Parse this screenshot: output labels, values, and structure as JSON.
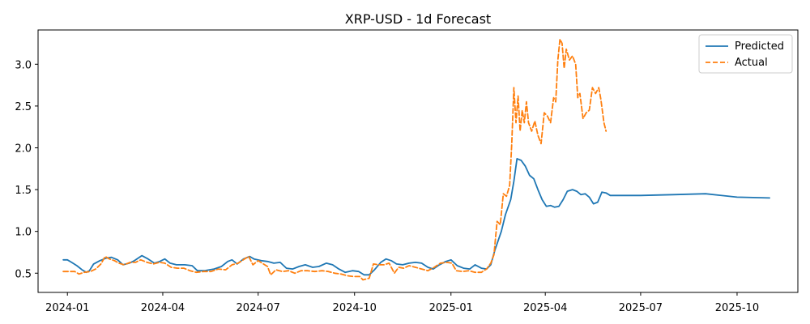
{
  "chart_data": {
    "type": "line",
    "title": "XRP-USD - 1d Forecast",
    "xlabel": "",
    "ylabel": "",
    "x_axis": {
      "type": "date",
      "range": [
        "2023-12-04",
        "2025-11-28"
      ],
      "ticks": [
        "2024-01-01",
        "2024-04-01",
        "2024-07-01",
        "2024-10-01",
        "2025-01-01",
        "2025-04-01",
        "2025-07-01",
        "2025-10-01"
      ],
      "tick_labels": [
        "2024-01",
        "2024-04",
        "2024-07",
        "2024-10",
        "2025-01",
        "2025-04",
        "2025-07",
        "2025-10"
      ]
    },
    "y_axis": {
      "range": [
        0.27,
        3.41
      ],
      "ticks": [
        0.5,
        1.0,
        1.5,
        2.0,
        2.5,
        3.0
      ],
      "tick_labels": [
        "0.5",
        "1.0",
        "1.5",
        "2.0",
        "2.5",
        "3.0"
      ]
    },
    "grid": false,
    "legend": {
      "placement": "top-right",
      "entries": [
        "Predicted",
        "Actual"
      ]
    },
    "series": [
      {
        "name": "Predicted",
        "color": "#1f77b4",
        "style": "solid",
        "points": [
          [
            "2023-12-28",
            0.66
          ],
          [
            "2024-01-01",
            0.66
          ],
          [
            "2024-01-05",
            0.63
          ],
          [
            "2024-01-10",
            0.59
          ],
          [
            "2024-01-15",
            0.54
          ],
          [
            "2024-01-19",
            0.51
          ],
          [
            "2024-01-22",
            0.53
          ],
          [
            "2024-01-26",
            0.61
          ],
          [
            "2024-02-01",
            0.65
          ],
          [
            "2024-02-07",
            0.68
          ],
          [
            "2024-02-12",
            0.69
          ],
          [
            "2024-02-18",
            0.66
          ],
          [
            "2024-02-23",
            0.6
          ],
          [
            "2024-02-29",
            0.62
          ],
          [
            "2024-03-05",
            0.65
          ],
          [
            "2024-03-12",
            0.71
          ],
          [
            "2024-03-18",
            0.67
          ],
          [
            "2024-03-24",
            0.62
          ],
          [
            "2024-03-29",
            0.64
          ],
          [
            "2024-04-03",
            0.67
          ],
          [
            "2024-04-08",
            0.62
          ],
          [
            "2024-04-14",
            0.6
          ],
          [
            "2024-04-22",
            0.6
          ],
          [
            "2024-04-29",
            0.59
          ],
          [
            "2024-05-04",
            0.53
          ],
          [
            "2024-05-11",
            0.53
          ],
          [
            "2024-05-20",
            0.55
          ],
          [
            "2024-05-27",
            0.58
          ],
          [
            "2024-06-02",
            0.64
          ],
          [
            "2024-06-06",
            0.66
          ],
          [
            "2024-06-11",
            0.61
          ],
          [
            "2024-06-17",
            0.67
          ],
          [
            "2024-06-23",
            0.7
          ],
          [
            "2024-06-27",
            0.67
          ],
          [
            "2024-07-04",
            0.65
          ],
          [
            "2024-07-10",
            0.64
          ],
          [
            "2024-07-16",
            0.62
          ],
          [
            "2024-07-22",
            0.63
          ],
          [
            "2024-07-28",
            0.56
          ],
          [
            "2024-08-03",
            0.55
          ],
          [
            "2024-08-09",
            0.58
          ],
          [
            "2024-08-15",
            0.6
          ],
          [
            "2024-08-22",
            0.57
          ],
          [
            "2024-08-28",
            0.58
          ],
          [
            "2024-09-04",
            0.62
          ],
          [
            "2024-09-10",
            0.6
          ],
          [
            "2024-09-16",
            0.55
          ],
          [
            "2024-09-22",
            0.51
          ],
          [
            "2024-09-29",
            0.53
          ],
          [
            "2024-10-05",
            0.52
          ],
          [
            "2024-10-10",
            0.48
          ],
          [
            "2024-10-15",
            0.48
          ],
          [
            "2024-10-20",
            0.54
          ],
          [
            "2024-10-26",
            0.63
          ],
          [
            "2024-10-31",
            0.67
          ],
          [
            "2024-11-05",
            0.65
          ],
          [
            "2024-11-10",
            0.61
          ],
          [
            "2024-11-16",
            0.6
          ],
          [
            "2024-11-22",
            0.62
          ],
          [
            "2024-11-28",
            0.63
          ],
          [
            "2024-12-04",
            0.62
          ],
          [
            "2024-12-10",
            0.57
          ],
          [
            "2024-12-15",
            0.55
          ],
          [
            "2024-12-21",
            0.6
          ],
          [
            "2024-12-27",
            0.64
          ],
          [
            "2025-01-01",
            0.66
          ],
          [
            "2025-01-07",
            0.59
          ],
          [
            "2025-01-13",
            0.56
          ],
          [
            "2025-01-19",
            0.55
          ],
          [
            "2025-01-24",
            0.6
          ],
          [
            "2025-01-30",
            0.56
          ],
          [
            "2025-02-04",
            0.55
          ],
          [
            "2025-02-08",
            0.6
          ],
          [
            "2025-02-12",
            0.78
          ],
          [
            "2025-02-18",
            1.0
          ],
          [
            "2025-02-22",
            1.2
          ],
          [
            "2025-02-27",
            1.38
          ],
          [
            "2025-03-02",
            1.6
          ],
          [
            "2025-03-05",
            1.87
          ],
          [
            "2025-03-09",
            1.85
          ],
          [
            "2025-03-13",
            1.78
          ],
          [
            "2025-03-17",
            1.67
          ],
          [
            "2025-03-21",
            1.63
          ],
          [
            "2025-03-25",
            1.5
          ],
          [
            "2025-03-29",
            1.38
          ],
          [
            "2025-04-02",
            1.3
          ],
          [
            "2025-04-06",
            1.31
          ],
          [
            "2025-04-10",
            1.29
          ],
          [
            "2025-04-14",
            1.3
          ],
          [
            "2025-04-18",
            1.38
          ],
          [
            "2025-04-22",
            1.48
          ],
          [
            "2025-04-27",
            1.5
          ],
          [
            "2025-05-01",
            1.48
          ],
          [
            "2025-05-05",
            1.44
          ],
          [
            "2025-05-09",
            1.45
          ],
          [
            "2025-05-13",
            1.41
          ],
          [
            "2025-05-17",
            1.33
          ],
          [
            "2025-05-21",
            1.35
          ],
          [
            "2025-05-25",
            1.47
          ],
          [
            "2025-05-29",
            1.46
          ],
          [
            "2025-06-02",
            1.43
          ],
          [
            "2025-07-01",
            1.43
          ],
          [
            "2025-08-01",
            1.44
          ],
          [
            "2025-09-01",
            1.45
          ],
          [
            "2025-10-01",
            1.41
          ],
          [
            "2025-11-01",
            1.4
          ]
        ]
      },
      {
        "name": "Actual",
        "color": "#ff7f0e",
        "style": "dashed",
        "points": [
          [
            "2023-12-28",
            0.52
          ],
          [
            "2024-01-03",
            0.52
          ],
          [
            "2024-01-08",
            0.52
          ],
          [
            "2024-01-12",
            0.49
          ],
          [
            "2024-01-17",
            0.51
          ],
          [
            "2024-01-23",
            0.52
          ],
          [
            "2024-01-28",
            0.55
          ],
          [
            "2024-02-02",
            0.61
          ],
          [
            "2024-02-06",
            0.7
          ],
          [
            "2024-02-10",
            0.67
          ],
          [
            "2024-02-15",
            0.65
          ],
          [
            "2024-02-19",
            0.62
          ],
          [
            "2024-02-24",
            0.6
          ],
          [
            "2024-03-01",
            0.63
          ],
          [
            "2024-03-06",
            0.63
          ],
          [
            "2024-03-11",
            0.66
          ],
          [
            "2024-03-17",
            0.63
          ],
          [
            "2024-03-23",
            0.61
          ],
          [
            "2024-03-29",
            0.63
          ],
          [
            "2024-04-03",
            0.62
          ],
          [
            "2024-04-09",
            0.57
          ],
          [
            "2024-04-15",
            0.56
          ],
          [
            "2024-04-21",
            0.56
          ],
          [
            "2024-04-27",
            0.53
          ],
          [
            "2024-05-03",
            0.51
          ],
          [
            "2024-05-10",
            0.52
          ],
          [
            "2024-05-17",
            0.52
          ],
          [
            "2024-05-24",
            0.55
          ],
          [
            "2024-05-31",
            0.54
          ],
          [
            "2024-06-06",
            0.6
          ],
          [
            "2024-06-12",
            0.62
          ],
          [
            "2024-06-18",
            0.67
          ],
          [
            "2024-06-22",
            0.7
          ],
          [
            "2024-06-26",
            0.6
          ],
          [
            "2024-07-01",
            0.65
          ],
          [
            "2024-07-06",
            0.61
          ],
          [
            "2024-07-10",
            0.58
          ],
          [
            "2024-07-13",
            0.48
          ],
          [
            "2024-07-18",
            0.54
          ],
          [
            "2024-07-24",
            0.52
          ],
          [
            "2024-07-30",
            0.53
          ],
          [
            "2024-08-05",
            0.5
          ],
          [
            "2024-08-11",
            0.53
          ],
          [
            "2024-08-17",
            0.53
          ],
          [
            "2024-08-24",
            0.52
          ],
          [
            "2024-08-31",
            0.53
          ],
          [
            "2024-09-06",
            0.52
          ],
          [
            "2024-09-12",
            0.5
          ],
          [
            "2024-09-18",
            0.49
          ],
          [
            "2024-09-24",
            0.47
          ],
          [
            "2024-09-30",
            0.46
          ],
          [
            "2024-10-06",
            0.46
          ],
          [
            "2024-10-09",
            0.42
          ],
          [
            "2024-10-15",
            0.44
          ],
          [
            "2024-10-19",
            0.61
          ],
          [
            "2024-10-24",
            0.6
          ],
          [
            "2024-10-29",
            0.6
          ],
          [
            "2024-11-03",
            0.62
          ],
          [
            "2024-11-08",
            0.5
          ],
          [
            "2024-11-12",
            0.57
          ],
          [
            "2024-11-17",
            0.56
          ],
          [
            "2024-11-22",
            0.59
          ],
          [
            "2024-11-28",
            0.57
          ],
          [
            "2024-12-04",
            0.55
          ],
          [
            "2024-12-10",
            0.53
          ],
          [
            "2024-12-16",
            0.57
          ],
          [
            "2024-12-22",
            0.62
          ],
          [
            "2024-12-28",
            0.63
          ],
          [
            "2025-01-02",
            0.62
          ],
          [
            "2025-01-06",
            0.53
          ],
          [
            "2025-01-12",
            0.52
          ],
          [
            "2025-01-18",
            0.53
          ],
          [
            "2025-01-24",
            0.51
          ],
          [
            "2025-01-30",
            0.51
          ],
          [
            "2025-02-04",
            0.55
          ],
          [
            "2025-02-08",
            0.62
          ],
          [
            "2025-02-11",
            0.72
          ],
          [
            "2025-02-14",
            1.12
          ],
          [
            "2025-02-17",
            1.08
          ],
          [
            "2025-02-20",
            1.45
          ],
          [
            "2025-02-23",
            1.42
          ],
          [
            "2025-02-26",
            1.55
          ],
          [
            "2025-02-28",
            2.05
          ],
          [
            "2025-03-02",
            2.72
          ],
          [
            "2025-03-04",
            2.3
          ],
          [
            "2025-03-06",
            2.62
          ],
          [
            "2025-03-08",
            2.2
          ],
          [
            "2025-03-10",
            2.45
          ],
          [
            "2025-03-12",
            2.3
          ],
          [
            "2025-03-14",
            2.55
          ],
          [
            "2025-03-16",
            2.3
          ],
          [
            "2025-03-19",
            2.2
          ],
          [
            "2025-03-22",
            2.32
          ],
          [
            "2025-03-25",
            2.15
          ],
          [
            "2025-03-28",
            2.05
          ],
          [
            "2025-03-31",
            2.42
          ],
          [
            "2025-04-03",
            2.38
          ],
          [
            "2025-04-06",
            2.3
          ],
          [
            "2025-04-09",
            2.6
          ],
          [
            "2025-04-11",
            2.55
          ],
          [
            "2025-04-13",
            3.05
          ],
          [
            "2025-04-15",
            3.3
          ],
          [
            "2025-04-17",
            3.25
          ],
          [
            "2025-04-19",
            2.95
          ],
          [
            "2025-04-21",
            3.18
          ],
          [
            "2025-04-24",
            3.05
          ],
          [
            "2025-04-27",
            3.1
          ],
          [
            "2025-04-30",
            3.0
          ],
          [
            "2025-05-02",
            2.6
          ],
          [
            "2025-05-04",
            2.65
          ],
          [
            "2025-05-07",
            2.35
          ],
          [
            "2025-05-10",
            2.42
          ],
          [
            "2025-05-13",
            2.45
          ],
          [
            "2025-05-16",
            2.72
          ],
          [
            "2025-05-19",
            2.65
          ],
          [
            "2025-05-22",
            2.72
          ],
          [
            "2025-05-24",
            2.58
          ],
          [
            "2025-05-27",
            2.3
          ],
          [
            "2025-05-29",
            2.2
          ]
        ]
      }
    ]
  }
}
